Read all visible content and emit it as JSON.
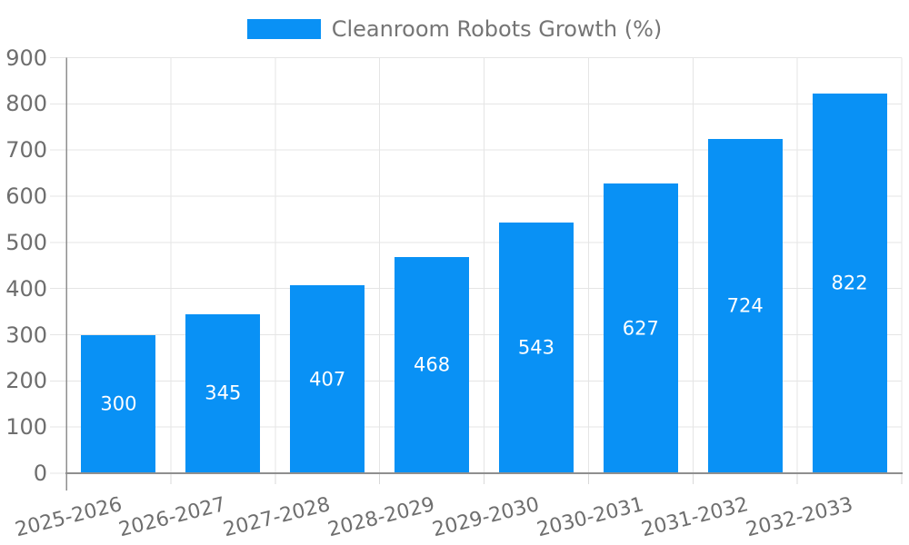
{
  "legend": {
    "label": "Cleanroom Robots Growth (%)"
  },
  "colors": {
    "bar": "#0991F5",
    "grid": "#E5E5E5",
    "tick": "#D9D9D9",
    "axis": "#8F8F8F",
    "tick_text": "#6E6E6E",
    "legend_text": "#757575",
    "value_text": "#FFFFFF",
    "background": "#FFFFFF"
  },
  "chart_data": {
    "type": "bar",
    "title": "",
    "legend_entries": [
      "Cleanroom Robots Growth (%)"
    ],
    "legend_position": "top-center",
    "categories": [
      "2025-2026",
      "2026-2027",
      "2027-2028",
      "2028-2029",
      "2029-2030",
      "2030-2031",
      "2031-2032",
      "2032-2033"
    ],
    "series": [
      {
        "name": "Cleanroom Robots Growth (%)",
        "values": [
          300,
          345,
          407,
          468,
          543,
          627,
          724,
          822
        ]
      }
    ],
    "yticks": [
      0,
      100,
      200,
      300,
      400,
      500,
      600,
      700,
      800,
      900
    ],
    "ylim": [
      0,
      900
    ],
    "xlabel": "",
    "ylabel": "",
    "grid": true,
    "x_label_rotation_deg": -14,
    "value_labels": "inside-center"
  }
}
